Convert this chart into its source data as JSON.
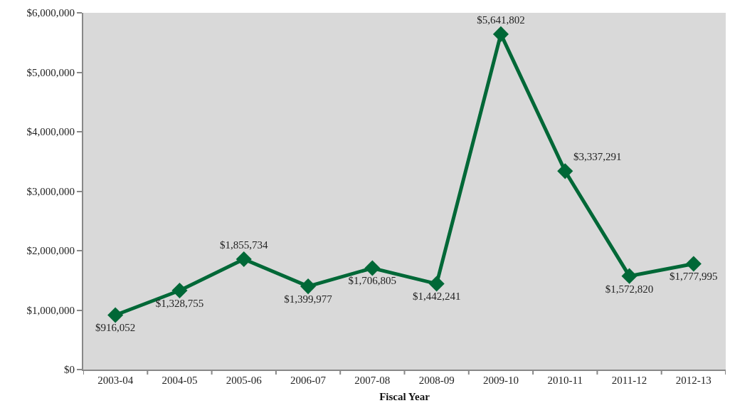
{
  "chart_data": {
    "type": "line",
    "xlabel": "Fiscal Year",
    "categories": [
      "2003-04",
      "2004-05",
      "2005-06",
      "2006-07",
      "2007-08",
      "2008-09",
      "2009-10",
      "2010-11",
      "2011-12",
      "2012-13"
    ],
    "values": [
      916052,
      1328755,
      1855734,
      1399977,
      1706805,
      1442241,
      5641802,
      3337291,
      1572820,
      1777995
    ],
    "value_labels": [
      "$916,052",
      "$1,328,755",
      "$1,855,734",
      "$1,399,977",
      "$1,706,805",
      "$1,442,241",
      "$5,641,802",
      "$3,337,291",
      "$1,572,820",
      "$1,777,995"
    ],
    "color": "#006837",
    "marker": "diamond",
    "line_style": "solid",
    "grid": false,
    "ylim": [
      0,
      6000000
    ],
    "yticks": [
      {
        "value": 0,
        "label": "$0"
      },
      {
        "value": 1000000,
        "label": "$1,000,000"
      },
      {
        "value": 2000000,
        "label": "$2,000,000"
      },
      {
        "value": 3000000,
        "label": "$3,000,000"
      },
      {
        "value": 4000000,
        "label": "$4,000,000"
      },
      {
        "value": 5000000,
        "label": "$5,000,000"
      },
      {
        "value": 6000000,
        "label": "$6,000,000"
      }
    ]
  }
}
